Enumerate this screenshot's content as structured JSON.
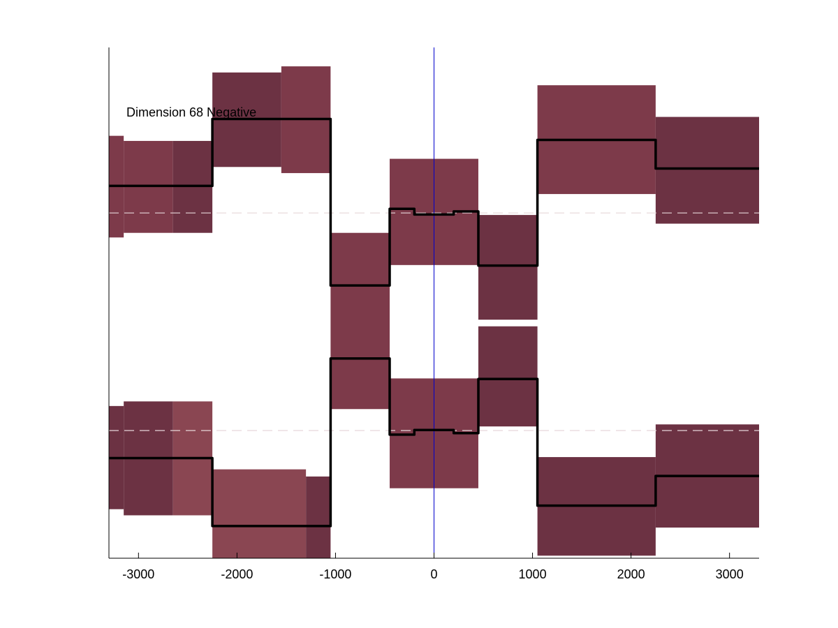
{
  "chart_data": {
    "type": "line",
    "title": "",
    "annotation": "Dimension 68 Negative",
    "xlabel": "",
    "ylabel": "",
    "xlim": [
      -3300,
      3300
    ],
    "ylim": [
      0,
      1
    ],
    "y_ticks_shown": false,
    "grid": false,
    "x_ticks": [
      -3000,
      -2000,
      -1000,
      0,
      1000,
      2000,
      3000
    ],
    "x_tick_labels": [
      "-3000",
      "-2000",
      "-1000",
      "0",
      "1000",
      "2000",
      "3000"
    ],
    "center_line_x": 0,
    "reference_lines_y": [
      0.676,
      0.25
    ],
    "colors": {
      "band": "#7d3a4a",
      "band_light": "#8a4652",
      "band_dark": "#6c3243",
      "series": "#000000",
      "center_line": "#0000cc",
      "reference_line": "#e6d6d9",
      "axis": "#000000"
    },
    "band_segments": [
      {
        "x0": -3300,
        "x1": -3150,
        "lo": 0.628,
        "hi": 0.827,
        "shade": "band"
      },
      {
        "x0": -3150,
        "x1": -2650,
        "lo": 0.637,
        "hi": 0.817,
        "shade": "band"
      },
      {
        "x0": -2650,
        "x1": -2250,
        "lo": 0.637,
        "hi": 0.817,
        "shade": "band_dark"
      },
      {
        "x0": -2250,
        "x1": -1550,
        "lo": 0.766,
        "hi": 0.951,
        "shade": "band_dark"
      },
      {
        "x0": -1550,
        "x1": -1050,
        "lo": 0.754,
        "hi": 0.963,
        "shade": "band"
      },
      {
        "x0": -1050,
        "x1": -450,
        "lo": 0.532,
        "hi": 0.637,
        "shade": "band"
      },
      {
        "x0": -450,
        "x1": 450,
        "lo": 0.574,
        "hi": 0.782,
        "shade": "band"
      },
      {
        "x0": 450,
        "x1": 1050,
        "lo": 0.467,
        "hi": 0.672,
        "shade": "band_dark"
      },
      {
        "x0": 1050,
        "x1": 2250,
        "lo": 0.713,
        "hi": 0.926,
        "shade": "band"
      },
      {
        "x0": 2250,
        "x1": 3300,
        "lo": 0.655,
        "hi": 0.864,
        "shade": "band_dark"
      },
      {
        "x0": -1050,
        "x1": -450,
        "lo": 0.292,
        "hi": 0.532,
        "shade": "band"
      },
      {
        "x0": -3300,
        "x1": -3150,
        "lo": 0.096,
        "hi": 0.298,
        "shade": "band_dark"
      },
      {
        "x0": -3150,
        "x1": -2650,
        "lo": 0.084,
        "hi": 0.307,
        "shade": "band_dark"
      },
      {
        "x0": -2650,
        "x1": -2250,
        "lo": 0.084,
        "hi": 0.307,
        "shade": "band_light"
      },
      {
        "x0": -2250,
        "x1": -1300,
        "lo": 0.0,
        "hi": 0.174,
        "shade": "band_light"
      },
      {
        "x0": -1300,
        "x1": -1050,
        "lo": 0.0,
        "hi": 0.16,
        "shade": "band_dark"
      },
      {
        "x0": -450,
        "x1": 450,
        "lo": 0.137,
        "hi": 0.352,
        "shade": "band"
      },
      {
        "x0": 450,
        "x1": 1050,
        "lo": 0.258,
        "hi": 0.454,
        "shade": "band_dark"
      },
      {
        "x0": 1050,
        "x1": 2250,
        "lo": 0.005,
        "hi": 0.198,
        "shade": "band_dark"
      },
      {
        "x0": 2250,
        "x1": 3300,
        "lo": 0.06,
        "hi": 0.262,
        "shade": "band_dark"
      }
    ],
    "series": [
      {
        "x": [
          -3300,
          -2250,
          -2250,
          -1050,
          -1050,
          -450,
          -450,
          -200,
          -200,
          200,
          200,
          450,
          450,
          1050,
          1050,
          2250,
          2250,
          3300
        ],
        "y": [
          0.729,
          0.729,
          0.86,
          0.86,
          0.534,
          0.534,
          0.684,
          0.684,
          0.673,
          0.673,
          0.679,
          0.679,
          0.573,
          0.573,
          0.819,
          0.819,
          0.763,
          0.763
        ]
      },
      {
        "x": [
          -3300,
          -2250,
          -2250,
          -1050,
          -1050,
          -450,
          -450,
          -200,
          -200,
          200,
          200,
          450,
          450,
          1050,
          1050,
          2250,
          2250,
          3300
        ],
        "y": [
          0.196,
          0.196,
          0.063,
          0.063,
          0.391,
          0.391,
          0.242,
          0.242,
          0.251,
          0.251,
          0.245,
          0.245,
          0.351,
          0.351,
          0.103,
          0.103,
          0.161,
          0.161
        ]
      }
    ]
  }
}
